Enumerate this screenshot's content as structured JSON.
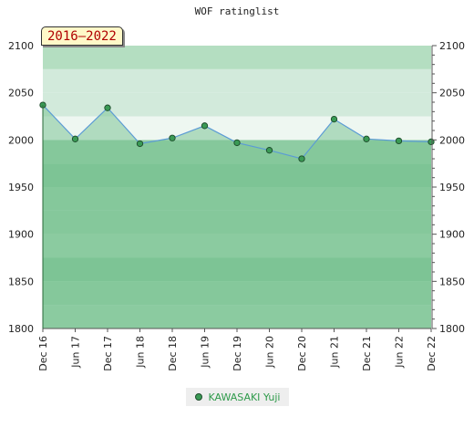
{
  "chart_data": {
    "type": "area",
    "title": "WOF ratinglist",
    "badge": "2016–2022",
    "x": [
      "Dec 16",
      "Jun 17",
      "Dec 17",
      "Jun 18",
      "Dec 18",
      "Jun 19",
      "Dec 19",
      "Jun 20",
      "Dec 20",
      "Jun 21",
      "Dec 21",
      "Jun 22",
      "Dec 22"
    ],
    "series": [
      {
        "name": "KAWASAKI Yuji",
        "values": [
          2037,
          2001,
          2034,
          1996,
          2002,
          2015,
          1997,
          1989,
          1980,
          2022,
          2001,
          1999,
          1998
        ]
      }
    ],
    "ylim": [
      1800,
      2100
    ],
    "yticks": [
      1800,
      1850,
      1900,
      1950,
      2000,
      2050,
      2100
    ],
    "axis_labels_both_sides": true,
    "grid": "horizontal bands",
    "legend_position": "bottom-center",
    "colors": {
      "line": "#5b9bd5",
      "marker_fill": "#3a9a55",
      "marker_stroke": "#1c4a2a",
      "area_fill": "#7ec495",
      "band_dark": "#7dc495",
      "band_mid": "#8ecca3",
      "band_light": "#9cd3ad",
      "upper_band_1": "#b4dec1",
      "upper_band_2": "#d2eadb",
      "upper_band_3": "#eef7f1",
      "legend_text": "#2e9a4a"
    }
  }
}
